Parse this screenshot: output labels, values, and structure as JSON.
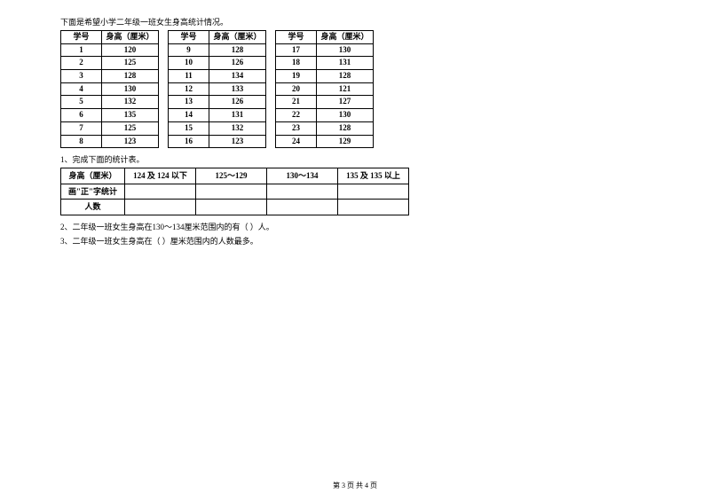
{
  "intro": "下面是希望小学二年级一班女生身高统计情况。",
  "table_header_id": "学号",
  "table_header_height": "身高（厘米）",
  "group1": [
    {
      "id": "1",
      "h": "120"
    },
    {
      "id": "2",
      "h": "125"
    },
    {
      "id": "3",
      "h": "128"
    },
    {
      "id": "4",
      "h": "130"
    },
    {
      "id": "5",
      "h": "132"
    },
    {
      "id": "6",
      "h": "135"
    },
    {
      "id": "7",
      "h": "125"
    },
    {
      "id": "8",
      "h": "123"
    }
  ],
  "group2": [
    {
      "id": "9",
      "h": "128"
    },
    {
      "id": "10",
      "h": "126"
    },
    {
      "id": "11",
      "h": "134"
    },
    {
      "id": "12",
      "h": "133"
    },
    {
      "id": "13",
      "h": "126"
    },
    {
      "id": "14",
      "h": "131"
    },
    {
      "id": "15",
      "h": "132"
    },
    {
      "id": "16",
      "h": "123"
    }
  ],
  "group3": [
    {
      "id": "17",
      "h": "130"
    },
    {
      "id": "18",
      "h": "131"
    },
    {
      "id": "19",
      "h": "128"
    },
    {
      "id": "20",
      "h": "121"
    },
    {
      "id": "21",
      "h": "127"
    },
    {
      "id": "22",
      "h": "130"
    },
    {
      "id": "23",
      "h": "128"
    },
    {
      "id": "24",
      "h": "129"
    }
  ],
  "q1": "1、完成下面的统计表。",
  "summary_header_label": "身高（厘米）",
  "summary_ranges": [
    "124 及 124 以下",
    "125～129",
    "130～134",
    "135 及 135 以上"
  ],
  "summary_row_tally": "画\"正\"字统计",
  "summary_row_count": "人数",
  "q2": "2、二年级一班女生身高在130～134厘米范围内的有（    ）人。",
  "q3": "3、二年级一班女生身高在（            ）厘米范围内的人数最多。",
  "footer": "第 3 页 共 4 页"
}
